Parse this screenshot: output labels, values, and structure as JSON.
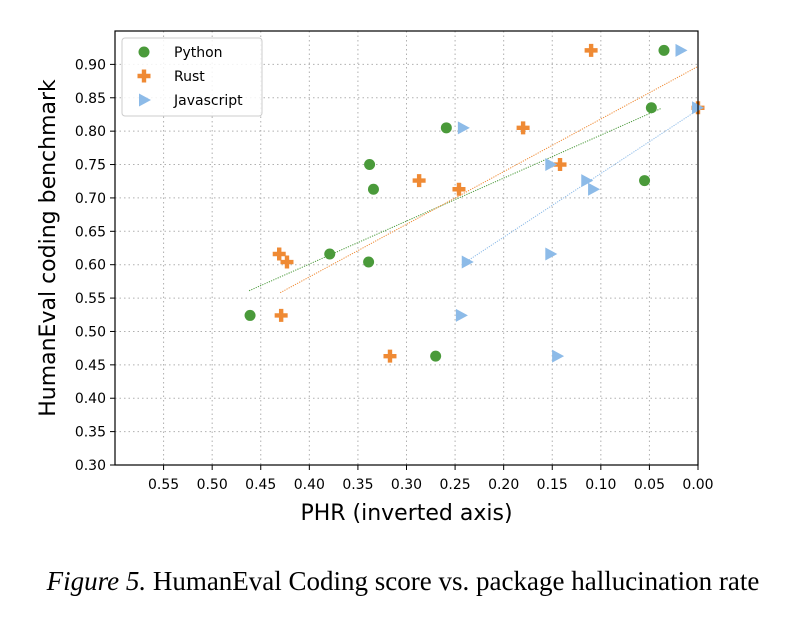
{
  "chart_data": {
    "type": "scatter",
    "xlabel": "PHR (inverted axis)",
    "ylabel": "HumanEval coding benchmark",
    "xlim": [
      0.6,
      0.0
    ],
    "ylim": [
      0.3,
      0.95
    ],
    "x_inverted": true,
    "x_ticks": [
      "0.55",
      "0.50",
      "0.45",
      "0.40",
      "0.35",
      "0.30",
      "0.25",
      "0.20",
      "0.15",
      "0.10",
      "0.05",
      "0.00"
    ],
    "y_ticks": [
      "0.30",
      "0.35",
      "0.40",
      "0.45",
      "0.50",
      "0.55",
      "0.60",
      "0.65",
      "0.70",
      "0.75",
      "0.80",
      "0.85",
      "0.90"
    ],
    "grid": true,
    "legend_position": "top-left",
    "series": [
      {
        "name": "Python",
        "marker": "circle",
        "color": "#4a9a3a",
        "points": [
          [
            0.461,
            0.524
          ],
          [
            0.379,
            0.616
          ],
          [
            0.338,
            0.75
          ],
          [
            0.334,
            0.713
          ],
          [
            0.339,
            0.604
          ],
          [
            0.259,
            0.805
          ],
          [
            0.27,
            0.463
          ],
          [
            0.055,
            0.726
          ],
          [
            0.048,
            0.835
          ],
          [
            0.035,
            0.921
          ]
        ],
        "trend": [
          [
            0.462,
            0.561
          ],
          [
            0.038,
            0.834
          ]
        ]
      },
      {
        "name": "Rust",
        "marker": "plus",
        "color": "#ef8a34",
        "points": [
          [
            0.431,
            0.616
          ],
          [
            0.423,
            0.604
          ],
          [
            0.429,
            0.524
          ],
          [
            0.317,
            0.463
          ],
          [
            0.287,
            0.726
          ],
          [
            0.246,
            0.713
          ],
          [
            0.18,
            0.805
          ],
          [
            0.142,
            0.75
          ],
          [
            0.11,
            0.921
          ],
          [
            0.0,
            0.835
          ]
        ],
        "trend": [
          [
            0.43,
            0.558
          ],
          [
            0.0,
            0.897
          ]
        ]
      },
      {
        "name": "Javascript",
        "marker": "triangle-right",
        "color": "#8dbbe8",
        "points": [
          [
            0.242,
            0.805
          ],
          [
            0.238,
            0.604
          ],
          [
            0.244,
            0.524
          ],
          [
            0.152,
            0.75
          ],
          [
            0.152,
            0.616
          ],
          [
            0.145,
            0.463
          ],
          [
            0.115,
            0.726
          ],
          [
            0.108,
            0.713
          ],
          [
            0.018,
            0.921
          ],
          [
            0.001,
            0.835
          ]
        ],
        "trend": [
          [
            0.24,
            0.603
          ],
          [
            0.0,
            0.832
          ]
        ]
      }
    ]
  },
  "caption": {
    "figure_label": "Figure 5.",
    "text": "HumanEval Coding score vs. package hallucination rate"
  }
}
